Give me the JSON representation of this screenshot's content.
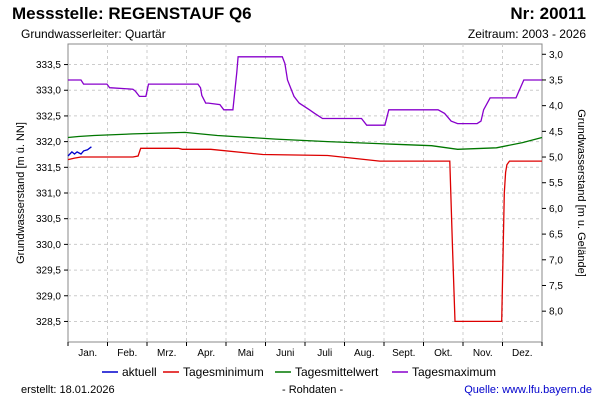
{
  "header": {
    "title_left": "Messstelle: REGENSTAUF Q6",
    "title_right": "Nr: 20011",
    "subtitle_left": "Grundwasserleiter: Quartär",
    "subtitle_right": "Zeitraum: 2003 - 2026"
  },
  "footer": {
    "date": "erstellt:  18.01.2026",
    "raw": "- Rohdaten -",
    "source": "Quelle: www.lfu.bayern.de"
  },
  "colors": {
    "aktuell": "#0000cc",
    "min": "#dd0000",
    "mean": "#007700",
    "max": "#8800cc"
  },
  "chart_data": {
    "type": "line",
    "xlabel": "",
    "ylabel": "Grundwasserstand [m ü. NN]",
    "y2label": "Grundwasserstand [m u. Gelände]",
    "categories": [
      "Jan.",
      "Feb.",
      "Mrz.",
      "Apr.",
      "Mai",
      "Juni",
      "Juli",
      "Aug.",
      "Sept.",
      "Okt.",
      "Nov.",
      "Dez."
    ],
    "ylim": [
      328.1,
      333.9
    ],
    "y2lim": [
      8.6,
      2.8
    ],
    "yticks": [
      "328,5",
      "329,0",
      "329,5",
      "330,0",
      "330,5",
      "331,0",
      "331,5",
      "332,0",
      "332,5",
      "333,0",
      "333,5"
    ],
    "y2ticks": [
      "3,0",
      "3,5",
      "4,0",
      "4,5",
      "5,0",
      "5,5",
      "6,0",
      "6,5",
      "7,0",
      "7,5",
      "8,0"
    ],
    "grid": true,
    "legend_position": "bottom",
    "series": [
      {
        "name": "aktuell",
        "color": "#0000cc",
        "x": [
          0,
          3,
          5,
          7,
          10,
          12,
          15,
          18
        ],
        "y": [
          331.72,
          331.8,
          331.76,
          331.8,
          331.76,
          331.82,
          331.84,
          331.9
        ]
      },
      {
        "name": "Tagesminimum",
        "color": "#dd0000",
        "x": [
          0,
          5,
          10,
          50,
          54,
          56,
          85,
          88,
          110,
          150,
          200,
          240,
          270,
          294,
          296,
          298,
          330,
          334,
          336,
          337,
          338,
          340,
          365
        ],
        "y": [
          331.65,
          331.68,
          331.7,
          331.7,
          331.72,
          331.87,
          331.87,
          331.85,
          331.85,
          331.75,
          331.73,
          331.62,
          331.62,
          331.62,
          330.0,
          328.5,
          328.5,
          328.5,
          331.0,
          331.4,
          331.55,
          331.62,
          331.62
        ]
      },
      {
        "name": "Tagesmittelwert",
        "color": "#007700",
        "x": [
          0,
          8,
          20,
          50,
          90,
          115,
          140,
          160,
          200,
          250,
          280,
          300,
          330,
          350,
          365
        ],
        "y": [
          332.08,
          332.1,
          332.12,
          332.15,
          332.18,
          332.12,
          332.08,
          332.05,
          332.0,
          331.95,
          331.92,
          331.85,
          331.88,
          331.98,
          332.08
        ]
      },
      {
        "name": "Tagesmaximum",
        "color": "#8800cc",
        "x": [
          0,
          10,
          12,
          30,
          32,
          50,
          52,
          55,
          60,
          62,
          100,
          102,
          103,
          106,
          108,
          117,
          120,
          127,
          130,
          131,
          134,
          165,
          167,
          169,
          174,
          178,
          186,
          190,
          196,
          226,
          230,
          233,
          236,
          244,
          247,
          264,
          268,
          285,
          290,
          295,
          300,
          315,
          318,
          320,
          325,
          345,
          351,
          365
        ],
        "y": [
          333.2,
          333.2,
          333.12,
          333.12,
          333.05,
          333.02,
          332.98,
          332.88,
          332.88,
          333.12,
          333.12,
          333.05,
          332.9,
          332.75,
          332.75,
          332.72,
          332.62,
          332.62,
          333.35,
          333.65,
          333.65,
          333.65,
          333.52,
          333.2,
          332.88,
          332.75,
          332.62,
          332.55,
          332.45,
          332.45,
          332.32,
          332.32,
          332.32,
          332.32,
          332.62,
          332.62,
          332.62,
          332.62,
          332.55,
          332.4,
          332.35,
          332.35,
          332.4,
          332.62,
          332.85,
          332.85,
          333.2,
          333.2
        ]
      }
    ]
  }
}
